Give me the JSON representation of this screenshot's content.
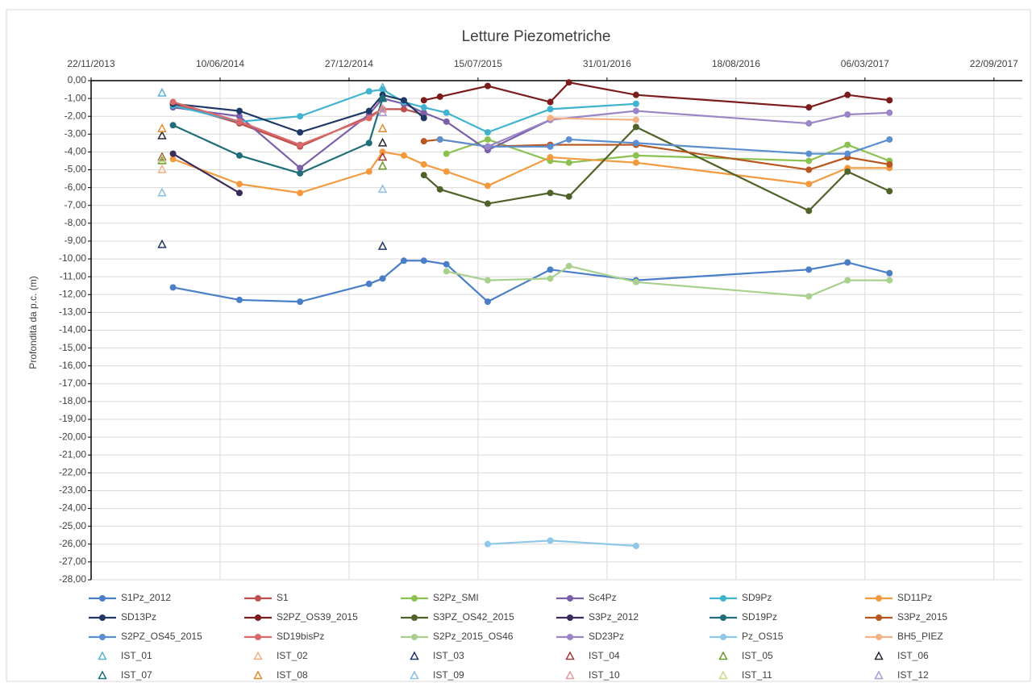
{
  "chart_data": {
    "type": "line",
    "title": "Letture Piezometriche",
    "y_label": "Profondità da p.c. (m)",
    "xlim": [
      "2013-11-22",
      "2017-11-05"
    ],
    "xticks": [
      {
        "value": "2013-11-22",
        "label": "22/11/2013"
      },
      {
        "value": "2014-06-10",
        "label": "10/06/2014"
      },
      {
        "value": "2014-12-27",
        "label": "27/12/2014"
      },
      {
        "value": "2015-07-15",
        "label": "15/07/2015"
      },
      {
        "value": "2016-01-31",
        "label": "31/01/2016"
      },
      {
        "value": "2016-08-18",
        "label": "18/08/2016"
      },
      {
        "value": "2017-03-06",
        "label": "06/03/2017"
      },
      {
        "value": "2017-09-22",
        "label": "22/09/2017"
      }
    ],
    "ylim": [
      -28,
      0
    ],
    "yticks": [
      {
        "value": 0,
        "label": "0,00"
      },
      {
        "value": -1,
        "label": "-1,00"
      },
      {
        "value": -2,
        "label": "-2,00"
      },
      {
        "value": -3,
        "label": "-3,00"
      },
      {
        "value": -4,
        "label": "-4,00"
      },
      {
        "value": -5,
        "label": "-5,00"
      },
      {
        "value": -6,
        "label": "-6,00"
      },
      {
        "value": -7,
        "label": "-7,00"
      },
      {
        "value": -8,
        "label": "-8,00"
      },
      {
        "value": -9,
        "label": "-9,00"
      },
      {
        "value": -10,
        "label": "-10,00"
      },
      {
        "value": -11,
        "label": "-11,00"
      },
      {
        "value": -12,
        "label": "-12,00"
      },
      {
        "value": -13,
        "label": "-13,00"
      },
      {
        "value": -14,
        "label": "-14,00"
      },
      {
        "value": -15,
        "label": "-15,00"
      },
      {
        "value": -16,
        "label": "-16,00"
      },
      {
        "value": -17,
        "label": "-17,00"
      },
      {
        "value": -18,
        "label": "-18,00"
      },
      {
        "value": -19,
        "label": "-19,00"
      },
      {
        "value": -20,
        "label": "-20,00"
      },
      {
        "value": -21,
        "label": "-21,00"
      },
      {
        "value": -22,
        "label": "-22,00"
      },
      {
        "value": -23,
        "label": "-23,00"
      },
      {
        "value": -24,
        "label": "-24,00"
      },
      {
        "value": -25,
        "label": "-25,00"
      },
      {
        "value": -26,
        "label": "-26,00"
      },
      {
        "value": -27,
        "label": "-27,00"
      },
      {
        "value": -28,
        "label": "-28,00"
      }
    ],
    "grid": true,
    "legend": "bottom",
    "series": [
      {
        "name": "S1Pz_2012",
        "color": "#4a7fc8",
        "marker": "circle",
        "line": true,
        "x": [
          "2014-03-29",
          "2014-07-10",
          "2014-10-12",
          "2015-01-27",
          "2015-02-17",
          "2015-03-22",
          "2015-04-22",
          "2015-05-27",
          "2015-07-30",
          "2015-11-04",
          "2016-03-16",
          "2016-12-09",
          "2017-02-07",
          "2017-04-13"
        ],
        "values": [
          -11.6,
          -12.3,
          -12.4,
          -11.4,
          -11.1,
          -10.1,
          -10.1,
          -10.3,
          -12.4,
          -10.6,
          -11.2,
          -10.6,
          -10.2,
          -10.8
        ]
      },
      {
        "name": "S1",
        "color": "#c0504d",
        "marker": "circle",
        "line": true,
        "x": [
          "2014-03-29",
          "2014-07-10",
          "2014-10-12",
          "2015-01-27",
          "2015-02-17",
          "2015-03-22",
          "2015-04-22"
        ],
        "values": [
          -1.3,
          -2.4,
          -3.7,
          -2.0,
          -1.6,
          -1.6,
          -1.9
        ]
      },
      {
        "name": "S2Pz_SMI",
        "color": "#8cc152",
        "marker": "circle",
        "line": true,
        "x": [
          "2015-05-27",
          "2015-07-30",
          "2015-11-04",
          "2015-12-03",
          "2016-03-16",
          "2016-12-09",
          "2017-02-07",
          "2017-04-13"
        ],
        "values": [
          -4.1,
          -3.3,
          -4.5,
          -4.6,
          -4.2,
          -4.5,
          -3.6,
          -4.5
        ]
      },
      {
        "name": "Sc4Pz",
        "color": "#7b5fa8",
        "marker": "circle",
        "line": true,
        "x": [
          "2014-03-29",
          "2014-07-10",
          "2014-10-12",
          "2015-01-27",
          "2015-02-17",
          "2015-03-22",
          "2015-04-22",
          "2015-05-27",
          "2015-07-30",
          "2015-11-04"
        ],
        "values": [
          -1.5,
          -2.0,
          -4.9,
          -1.9,
          -1.0,
          -1.3,
          -1.8,
          -2.3,
          -3.9,
          -2.2
        ]
      },
      {
        "name": "SD9Pz",
        "color": "#3fb3cf",
        "marker": "circle",
        "line": true,
        "x": [
          "2014-03-29",
          "2014-07-10",
          "2014-10-12",
          "2015-01-27",
          "2015-02-17",
          "2015-03-22",
          "2015-04-22",
          "2015-05-27",
          "2015-07-30",
          "2015-11-04",
          "2016-03-16"
        ],
        "values": [
          -1.4,
          -2.3,
          -2.0,
          -0.6,
          -0.5,
          -1.2,
          -1.5,
          -1.8,
          -2.9,
          -1.6,
          -1.3
        ]
      },
      {
        "name": "SD11Pz",
        "color": "#f39a3e",
        "marker": "circle",
        "line": true,
        "x": [
          "2014-03-29",
          "2014-07-10",
          "2014-10-12",
          "2015-01-27",
          "2015-02-17",
          "2015-03-22",
          "2015-04-22",
          "2015-05-27",
          "2015-07-30",
          "2015-11-04",
          "2016-03-16",
          "2016-12-09",
          "2017-02-07",
          "2017-04-13"
        ],
        "values": [
          -4.4,
          -5.8,
          -6.3,
          -5.1,
          -4.0,
          -4.2,
          -4.7,
          -5.1,
          -5.9,
          -4.3,
          -4.6,
          -5.8,
          -4.9,
          -4.9
        ]
      },
      {
        "name": "SD13Pz",
        "color": "#1f3864",
        "marker": "circle",
        "line": true,
        "x": [
          "2014-03-29",
          "2014-07-10",
          "2014-10-12",
          "2015-01-27",
          "2015-02-17",
          "2015-03-22",
          "2015-04-22"
        ],
        "values": [
          -1.3,
          -1.7,
          -2.9,
          -1.7,
          -0.8,
          -1.1,
          -2.1
        ]
      },
      {
        "name": "S2PZ_OS39_2015",
        "color": "#7b1c1c",
        "marker": "circle",
        "line": true,
        "x": [
          "2015-04-22",
          "2015-05-17",
          "2015-07-30",
          "2015-11-04",
          "2015-12-03",
          "2016-03-16",
          "2016-12-09",
          "2017-02-07",
          "2017-04-13"
        ],
        "values": [
          -1.1,
          -0.9,
          -0.3,
          -1.2,
          -0.1,
          -0.8,
          -1.5,
          -0.8,
          -1.1
        ]
      },
      {
        "name": "S3PZ_OS42_2015",
        "color": "#4f6228",
        "marker": "circle",
        "line": true,
        "x": [
          "2015-04-22",
          "2015-05-17",
          "2015-07-30",
          "2015-11-04",
          "2015-12-03",
          "2016-03-16",
          "2016-12-09",
          "2017-02-07",
          "2017-04-13"
        ],
        "values": [
          -5.3,
          -6.1,
          -6.9,
          -6.3,
          -6.5,
          -2.6,
          -7.3,
          -5.1,
          -6.2
        ]
      },
      {
        "name": "S3Pz_2012",
        "color": "#3b2a5a",
        "marker": "circle",
        "line": true,
        "x": [
          "2014-03-29",
          "2014-07-10"
        ],
        "values": [
          -4.1,
          -6.3
        ]
      },
      {
        "name": "SD19Pz",
        "color": "#1f6e7a",
        "marker": "circle",
        "line": true,
        "x": [
          "2014-03-29",
          "2014-07-10",
          "2014-10-12",
          "2015-01-27",
          "2015-02-17"
        ],
        "values": [
          -2.5,
          -4.2,
          -5.2,
          -3.5,
          -1.0
        ]
      },
      {
        "name": "S3Pz_2015",
        "color": "#b7561f",
        "marker": "circle",
        "line": true,
        "x": [
          "2015-04-22",
          "2015-05-17",
          "2015-07-30",
          "2015-11-04",
          "2016-03-16",
          "2016-12-09",
          "2017-02-07",
          "2017-04-13"
        ],
        "values": [
          -3.4,
          -3.3,
          -3.7,
          -3.6,
          -3.6,
          -5.0,
          -4.3,
          -4.7
        ]
      },
      {
        "name": "S2PZ_OS45_2015",
        "color": "#5b8fd0",
        "marker": "circle",
        "line": true,
        "x": [
          "2015-05-17",
          "2015-07-30",
          "2015-11-04",
          "2015-12-03",
          "2016-03-16",
          "2016-12-09",
          "2017-02-07",
          "2017-04-13"
        ],
        "values": [
          -3.3,
          -3.7,
          -3.7,
          -3.3,
          -3.5,
          -4.1,
          -4.1,
          -3.3
        ]
      },
      {
        "name": "SD19bisPz",
        "color": "#d9696b",
        "marker": "circle",
        "line": true,
        "x": [
          "2014-03-29",
          "2014-07-10",
          "2014-10-12",
          "2015-01-27",
          "2015-02-17"
        ],
        "values": [
          -1.2,
          -2.3,
          -3.6,
          -2.1,
          -1.6
        ]
      },
      {
        "name": "S2Pz_2015_OS46",
        "color": "#a9d18e",
        "marker": "circle",
        "line": true,
        "x": [
          "2015-05-27",
          "2015-07-30",
          "2015-11-04",
          "2015-12-03",
          "2016-03-16",
          "2016-12-09",
          "2017-02-07",
          "2017-04-13"
        ],
        "values": [
          -10.7,
          -11.2,
          -11.1,
          -10.4,
          -11.3,
          -12.1,
          -11.2,
          -11.2
        ]
      },
      {
        "name": "SD23Pz",
        "color": "#9a86c6",
        "marker": "circle",
        "line": true,
        "x": [
          "2015-07-30",
          "2015-11-04",
          "2016-03-16",
          "2016-12-09",
          "2017-02-07",
          "2017-04-13"
        ],
        "values": [
          -3.7,
          -2.2,
          -1.7,
          -2.4,
          -1.9,
          -1.8
        ]
      },
      {
        "name": "Pz_OS15",
        "color": "#8fc7e8",
        "marker": "circle",
        "line": true,
        "x": [
          "2015-07-30",
          "2015-11-04",
          "2016-03-16"
        ],
        "values": [
          -26.0,
          -25.8,
          -26.1
        ]
      },
      {
        "name": "BH5_PIEZ",
        "color": "#f4b183",
        "marker": "circle",
        "line": true,
        "x": [
          "2015-11-04",
          "2016-03-16"
        ],
        "values": [
          -2.1,
          -2.2
        ]
      },
      {
        "name": "IST_01",
        "color": "#5bb3d0",
        "marker": "triangle",
        "line": false,
        "x": [
          "2014-03-12",
          "2015-02-17"
        ],
        "values": [
          -0.7,
          -0.4
        ]
      },
      {
        "name": "IST_02",
        "color": "#f4b183",
        "marker": "triangle",
        "line": false,
        "x": [
          "2014-03-12"
        ],
        "values": [
          -5.0
        ]
      },
      {
        "name": "IST_03",
        "color": "#1f3864",
        "marker": "triangle",
        "line": false,
        "x": [
          "2014-03-12",
          "2015-02-17"
        ],
        "values": [
          -9.2,
          -9.3
        ]
      },
      {
        "name": "IST_04",
        "color": "#a33a3a",
        "marker": "triangle",
        "line": false,
        "x": [
          "2014-03-12",
          "2015-02-17"
        ],
        "values": [
          -4.3,
          -4.3
        ]
      },
      {
        "name": "IST_05",
        "color": "#6f9a2e",
        "marker": "triangle",
        "line": false,
        "x": [
          "2014-03-12",
          "2015-02-17"
        ],
        "values": [
          -4.5,
          -4.8
        ]
      },
      {
        "name": "IST_06",
        "color": "#2b2b3a",
        "marker": "triangle",
        "line": false,
        "x": [
          "2014-03-12",
          "2015-02-17"
        ],
        "values": [
          -3.1,
          -3.5
        ]
      },
      {
        "name": "IST_07",
        "color": "#1f6e7a",
        "marker": "triangle",
        "line": false,
        "x": [
          "2015-02-17"
        ],
        "values": [
          -1.0
        ]
      },
      {
        "name": "IST_08",
        "color": "#e38b2c",
        "marker": "triangle",
        "line": false,
        "x": [
          "2014-03-12",
          "2015-02-17"
        ],
        "values": [
          -2.7,
          -2.7
        ]
      },
      {
        "name": "IST_09",
        "color": "#8fbfe0",
        "marker": "triangle",
        "line": false,
        "x": [
          "2014-03-12",
          "2015-02-17"
        ],
        "values": [
          -6.3,
          -6.1
        ]
      },
      {
        "name": "IST_10",
        "color": "#e49aa0",
        "marker": "triangle",
        "line": false,
        "x": [
          "2015-02-17"
        ],
        "values": [
          -1.6
        ]
      },
      {
        "name": "IST_11",
        "color": "#c5dc8a",
        "marker": "triangle",
        "line": false,
        "x": [
          "2014-03-12"
        ],
        "values": [
          -4.4
        ]
      },
      {
        "name": "IST_12",
        "color": "#a99dd3",
        "marker": "triangle",
        "line": false,
        "x": [
          "2015-02-17"
        ],
        "values": [
          -1.8
        ]
      }
    ]
  }
}
